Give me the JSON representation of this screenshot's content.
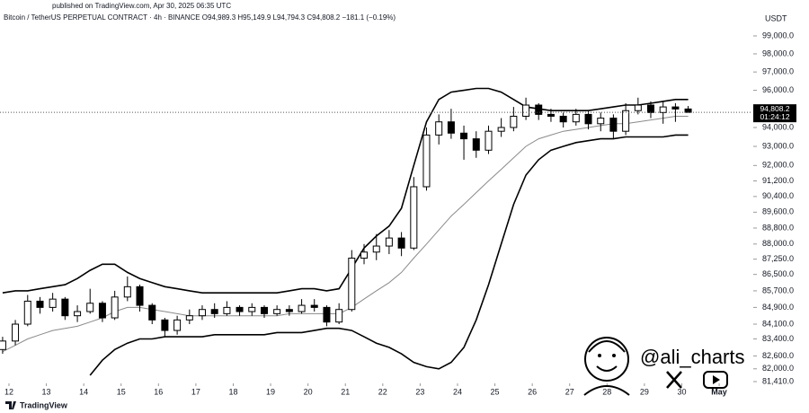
{
  "chart_data": {
    "type": "candlestick",
    "published": "published on TradingView.com, Apr 30, 2025 06:35 UTC",
    "title": "Bitcoin / TetherUS PERPETUAL CONTRACT · 4h · BINANCE  O94,989.3 H95,149.9 L94,794.3 C94,808.2 −181.1 (−0.19%)",
    "y_axis_label": "USDT",
    "last_price_label": "94,808.2",
    "last_price_countdown": "01:24:12",
    "watermark": "@ali_charts",
    "brand": "TradingView",
    "log_scale": true,
    "grid": false,
    "up_color": "#ffffff",
    "down_color": "#000000",
    "xlim": [
      11.76,
      31.84
    ],
    "xticks": [
      12,
      13,
      14,
      15,
      16,
      17,
      18,
      19,
      20,
      21,
      22,
      23,
      24,
      25,
      26,
      27,
      28,
      29,
      30,
      {
        "value": 31,
        "label": "May"
      }
    ],
    "ylim": [
      81410,
      99000
    ],
    "yticks": [
      {
        "value": 99000,
        "label": "99,000.0"
      },
      {
        "value": 98000,
        "label": "98,000.0"
      },
      {
        "value": 97000,
        "label": "97,000.0"
      },
      {
        "value": 96000,
        "label": "96,000.0"
      },
      {
        "value": 94000,
        "label": "94,000.0"
      },
      {
        "value": 93000,
        "label": "93,000.0"
      },
      {
        "value": 92000,
        "label": "92,000.0"
      },
      {
        "value": 91200,
        "label": "91,200.0"
      },
      {
        "value": 90400,
        "label": "90,400.0"
      },
      {
        "value": 89600,
        "label": "89,600.0"
      },
      {
        "value": 88800,
        "label": "88,800.0"
      },
      {
        "value": 88000,
        "label": "88,000.0"
      },
      {
        "value": 87250,
        "label": "87,250.0"
      },
      {
        "value": 86500,
        "label": "86,500.0"
      },
      {
        "value": 85700,
        "label": "85,700.0"
      },
      {
        "value": 84900,
        "label": "84,900.0"
      },
      {
        "value": 84100,
        "label": "84,100.0"
      },
      {
        "value": 83400,
        "label": "83,400.0"
      },
      {
        "value": 82600,
        "label": "82,600.0"
      },
      {
        "value": 82000,
        "label": "82,000.0"
      },
      {
        "value": 81410,
        "label": "81,410.0"
      }
    ],
    "candles": {
      "x": [
        11.83,
        12.17,
        12.5,
        12.83,
        13.17,
        13.5,
        13.83,
        14.17,
        14.5,
        14.83,
        15.17,
        15.5,
        15.83,
        16.17,
        16.5,
        16.83,
        17.17,
        17.5,
        17.83,
        18.17,
        18.5,
        18.83,
        19.17,
        19.5,
        19.83,
        20.17,
        20.5,
        20.83,
        21.17,
        21.5,
        21.83,
        22.17,
        22.5,
        22.83,
        23.17,
        23.5,
        23.83,
        24.17,
        24.5,
        24.83,
        25.17,
        25.5,
        25.83,
        26.17,
        26.5,
        26.83,
        27.17,
        27.5,
        27.83,
        28.17,
        28.5,
        28.83,
        29.17,
        29.5,
        29.83,
        30.17
      ],
      "open": [
        82900,
        83300,
        84100,
        85200,
        84900,
        85300,
        84500,
        84700,
        85100,
        84400,
        85400,
        85900,
        85000,
        84300,
        83800,
        84300,
        84500,
        84800,
        84600,
        84900,
        84700,
        84900,
        84600,
        84800,
        84700,
        85000,
        84900,
        84200,
        84800,
        87300,
        87600,
        87900,
        88300,
        87800,
        90900,
        93600,
        94300,
        93700,
        93400,
        92800,
        93800,
        94000,
        94600,
        95200,
        94700,
        94600,
        94300,
        94700,
        94200,
        94500,
        93800,
        94900,
        95200,
        94800,
        95100,
        94989.3
      ],
      "high": [
        83500,
        84300,
        85500,
        85400,
        85600,
        85400,
        85000,
        85800,
        85200,
        85700,
        86400,
        86000,
        85100,
        84400,
        84500,
        84800,
        85000,
        85100,
        85200,
        85000,
        85100,
        85000,
        85000,
        85000,
        85300,
        85300,
        85000,
        85100,
        87700,
        88000,
        88500,
        88700,
        88600,
        91400,
        94000,
        94700,
        95000,
        94100,
        93800,
        94100,
        94500,
        95100,
        95600,
        95300,
        95000,
        94800,
        95000,
        94900,
        94800,
        94700,
        95300,
        95600,
        95400,
        95400,
        95300,
        95149.9
      ],
      "low": [
        82700,
        83100,
        84000,
        84600,
        84700,
        84300,
        84200,
        84600,
        84200,
        84300,
        85200,
        84700,
        84100,
        83500,
        83600,
        84100,
        84300,
        84400,
        84500,
        84500,
        84500,
        84400,
        84500,
        84500,
        84600,
        84700,
        84000,
        84100,
        84700,
        87000,
        87200,
        87500,
        87400,
        87700,
        90700,
        93100,
        93400,
        92300,
        92400,
        92600,
        93500,
        93800,
        94400,
        94400,
        94300,
        94000,
        94100,
        93900,
        93800,
        93400,
        93600,
        94700,
        94500,
        94200,
        94300,
        94794.3
      ],
      "close": [
        83300,
        84100,
        85200,
        84900,
        85300,
        84500,
        84700,
        85100,
        84400,
        85400,
        85900,
        85000,
        84300,
        83800,
        84300,
        84500,
        84800,
        84600,
        84900,
        84700,
        84900,
        84600,
        84800,
        84700,
        85000,
        84900,
        84200,
        84800,
        87300,
        87600,
        87900,
        88300,
        87800,
        90900,
        93600,
        94300,
        93700,
        93400,
        92800,
        93800,
        94000,
        94600,
        95200,
        94700,
        94600,
        94300,
        94700,
        94200,
        94500,
        93800,
        94900,
        95200,
        94800,
        95100,
        94989.3,
        94808.2
      ]
    },
    "bands": [
      {
        "color": "#000000",
        "values": [
          85600,
          85700,
          85700,
          85800,
          85900,
          86000,
          86300,
          86700,
          87000,
          87000,
          86600,
          86300,
          86100,
          85900,
          85800,
          85700,
          85600,
          85600,
          85600,
          85600,
          85600,
          85600,
          85600,
          85700,
          85800,
          85800,
          85700,
          85800,
          86800,
          87800,
          88400,
          88900,
          89800,
          92000,
          94300,
          95500,
          95900,
          96000,
          96100,
          96100,
          95900,
          95500,
          95100,
          95000,
          94900,
          94900,
          94900,
          94900,
          95000,
          95100,
          95200,
          95200,
          95300,
          95400,
          95500,
          95500
        ]
      },
      {
        "color": "#8a8a8a",
        "values": [
          82800,
          83100,
          83400,
          83600,
          83800,
          83900,
          84000,
          84200,
          84400,
          84700,
          84900,
          84900,
          84800,
          84700,
          84600,
          84500,
          84500,
          84500,
          84500,
          84500,
          84500,
          84500,
          84500,
          84600,
          84600,
          84600,
          84600,
          84600,
          84900,
          85300,
          85700,
          86100,
          86600,
          87300,
          88000,
          88700,
          89400,
          90000,
          90600,
          91200,
          91800,
          92400,
          93000,
          93400,
          93600,
          93800,
          93900,
          94000,
          94100,
          94200,
          94200,
          94300,
          94400,
          94500,
          94600,
          94600
        ]
      },
      {
        "color": "#000000",
        "values": [
          null,
          null,
          null,
          null,
          null,
          null,
          null,
          81700,
          82400,
          82900,
          83200,
          83400,
          83400,
          83500,
          83500,
          83500,
          83500,
          83600,
          83600,
          83600,
          83600,
          83600,
          83700,
          83700,
          83700,
          83800,
          83900,
          83900,
          83800,
          83500,
          83200,
          83000,
          82700,
          82300,
          82100,
          82000,
          82300,
          83000,
          84300,
          86000,
          88000,
          90000,
          91500,
          92300,
          92800,
          93000,
          93200,
          93300,
          93400,
          93400,
          93500,
          93500,
          93500,
          93500,
          93600,
          93600
        ]
      }
    ]
  }
}
